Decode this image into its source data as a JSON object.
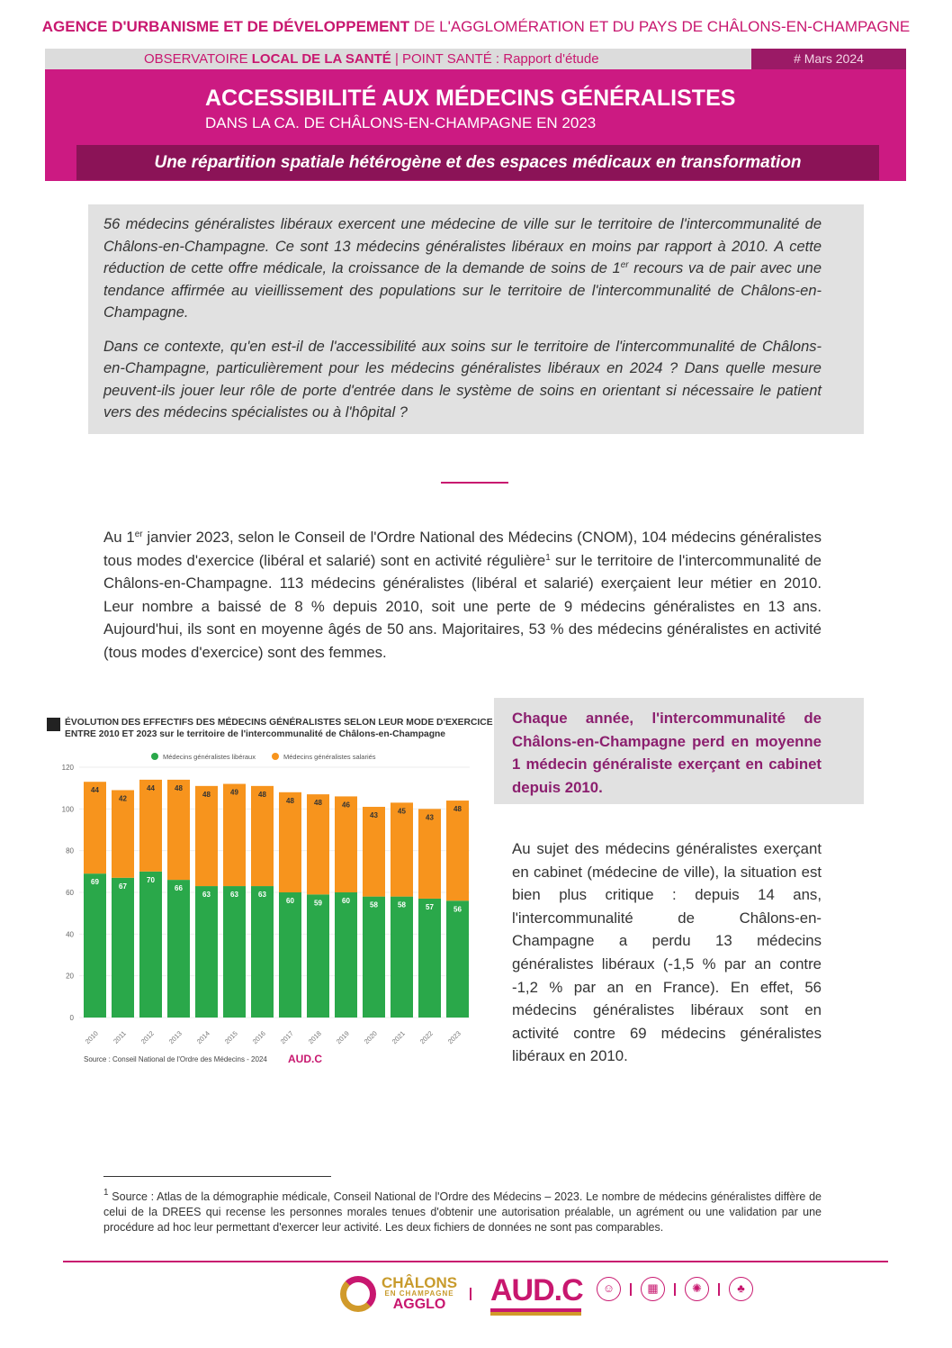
{
  "header": {
    "agency_bold": "AGENCE D'URBANISME ET DE DÉVELOPPEMENT",
    "agency_rest": " DE L'AGGLOMÉRATION ET DU PAYS DE CHÂLONS-EN-CHAMPAGNE",
    "observatory": "OBSERVATOIRE ",
    "observatory_bold": "LOCAL DE LA SANTÉ",
    "report": " | POINT SANTÉ : Rapport d'étude",
    "date": "# Mars 2024",
    "title": "ACCESSIBILITÉ AUX MÉDECINS GÉNÉRALISTES",
    "subtitle": "DANS LA CA. DE CHÂLONS-EN-CHAMPAGNE EN 2023",
    "tagline": "Une répartition spatiale hétérogène et des espaces médicaux en transformation"
  },
  "intro": {
    "p1a": "56 médecins généralistes libéraux exercent une médecine de ville sur le territoire de l'intercommunalité de Châlons-en-Champagne. Ce sont 13 médecins généralistes libéraux en moins par rapport à 2010. A cette réduction de cette offre médicale, la croissance de la demande de soins de 1",
    "p1sup": "er",
    "p1b": " recours va de pair avec une tendance affirmée au vieillissement des populations sur le territoire de l'intercommunalité de Châlons-en-Champagne.",
    "p2": "Dans ce contexte, qu'en est-il de l'accessibilité aux soins sur le territoire de l'intercommunalité de Châlons-en-Champagne, particulièrement pour les médecins généralistes libéraux en 2024 ? Dans quelle mesure peuvent-ils jouer leur rôle de porte d'entrée dans le système de soins en orientant si nécessaire le patient vers des médecins spécialistes ou à l'hôpital ?"
  },
  "body": {
    "a": "Au 1",
    "asup": "er",
    "b": " janvier 2023, selon le Conseil de l'Ordre National des Médecins (CNOM), 104 médecins généralistes tous modes d'exercice (libéral et salarié) sont en activité régulière",
    "bsup": "1",
    "c": " sur le territoire de l'intercommunalité de Châlons-en-Champagne. 113 médecins généralistes (libéral et salarié) exerçaient leur métier en 2010. Leur nombre a baissé de 8 % depuis 2010, soit une perte de 9 médecins généralistes en 13 ans. Aujourd'hui, ils sont en moyenne âgés de 50 ans. Majoritaires, 53 % des médecins généralistes en activité (tous modes d'exercice) sont des femmes."
  },
  "callout": "Chaque année, l'intercommunalité de Châlons-en-Champagne perd en moyenne 1 médecin généraliste exerçant en cabinet depuis 2010.",
  "right_para": "Au sujet des médecins généralistes exerçant en cabinet (médecine de ville), la situation est bien plus critique : depuis 14 ans, l'intercommunalité de Châlons-en-Champagne a perdu 13 médecins généralistes libéraux (-1,5 % par an contre -1,2 % par an en France). En effet, 56 médecins généralistes libéraux sont en activité contre 69 médecins généralistes libéraux en 2010.",
  "footnote": {
    "num": "1",
    "text": " Source : Atlas de la démographie médicale, Conseil National de l'Ordre des Médecins – 2023. Le nombre de médecins généralistes diffère de celui de la DREES qui recense les personnes morales tenues d'obtenir une autorisation préalable, un agrément ou une validation par une procédure ad hoc leur permettant d'exercer leur activité. Les deux fichiers de données ne sont pas comparables."
  },
  "footer": {
    "agglo_line1": "CHÂLONS",
    "agglo_line2": "EN CHAMPAGNE",
    "agglo_line3": "AGGLO",
    "audc": "AUD.C"
  },
  "chart_data": {
    "type": "bar",
    "stacked": true,
    "title_line1": "ÉVOLUTION DES EFFECTIFS DES MÉDECINS GÉNÉRALISTES SELON LEUR MODE D'EXERCICE",
    "title_line2": "ENTRE 2010 ET 2023 sur le territoire de l'intercommunalité de Châlons-en-Champagne",
    "categories": [
      "2010",
      "2011",
      "2012",
      "2013",
      "2014",
      "2015",
      "2016",
      "2017",
      "2018",
      "2019",
      "2020",
      "2021",
      "2022",
      "2023"
    ],
    "series": [
      {
        "name": "Médecins généralistes libéraux",
        "color": "#2aa84a",
        "values": [
          69,
          67,
          70,
          66,
          63,
          63,
          63,
          60,
          59,
          60,
          58,
          58,
          57,
          56
        ]
      },
      {
        "name": "Médecins généralistes salariés",
        "color": "#f7941d",
        "values": [
          44,
          42,
          44,
          48,
          48,
          49,
          48,
          48,
          48,
          46,
          43,
          45,
          43,
          48
        ]
      }
    ],
    "ylim": [
      0,
      120
    ],
    "yticks": [
      0,
      20,
      40,
      60,
      80,
      100,
      120
    ],
    "legend": "top-center",
    "source": "Source : Conseil National de l'Ordre des Médecins - 2024"
  }
}
